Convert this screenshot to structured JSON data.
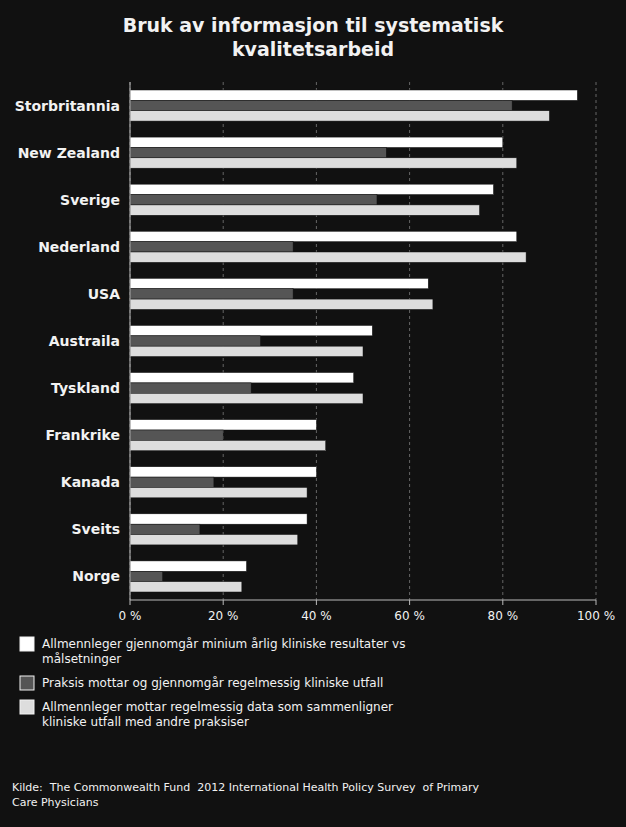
{
  "chart_data": {
    "type": "bar",
    "orientation": "horizontal",
    "title": "Bruk av informasjon til systematisk\nkvalitetsarbeid",
    "categories": [
      "Storbritannia",
      "New Zealand",
      "Sverige",
      "Nederland",
      "USA",
      "Austraila",
      "Tyskland",
      "Frankrike",
      "Kanada",
      "Sveits",
      "Norge"
    ],
    "series": [
      {
        "name": "Allmennleger gjennomgår minium årlig kliniske resultater vs\nmålsetninger",
        "color": "#ffffff",
        "values": [
          96,
          80,
          78,
          83,
          64,
          52,
          48,
          40,
          40,
          38,
          25
        ]
      },
      {
        "name": "Praksis mottar og gjennomgår regelmessig kliniske utfall",
        "color": "#555555",
        "values": [
          82,
          55,
          53,
          35,
          35,
          28,
          26,
          20,
          18,
          15,
          7
        ]
      },
      {
        "name": "Allmennleger mottar regelmessig data som sammenligner\nkliniske utfall med andre praksiser",
        "color": "#dddddd",
        "values": [
          90,
          83,
          75,
          85,
          65,
          50,
          50,
          42,
          38,
          36,
          24
        ]
      }
    ],
    "xlim": [
      0,
      100
    ],
    "xticks": [
      {
        "value": 0,
        "label": "0 %"
      },
      {
        "value": 20,
        "label": "20 %"
      },
      {
        "value": 40,
        "label": "40 %"
      },
      {
        "value": 60,
        "label": "60 %"
      },
      {
        "value": 80,
        "label": "80 %"
      },
      {
        "value": 100,
        "label": "100 %"
      }
    ],
    "grid": true,
    "legend": "bottom",
    "source": "Kilde:  The Commonwealth Fund  2012 International Health Policy Survey  of Primary\nCare Physicians"
  }
}
